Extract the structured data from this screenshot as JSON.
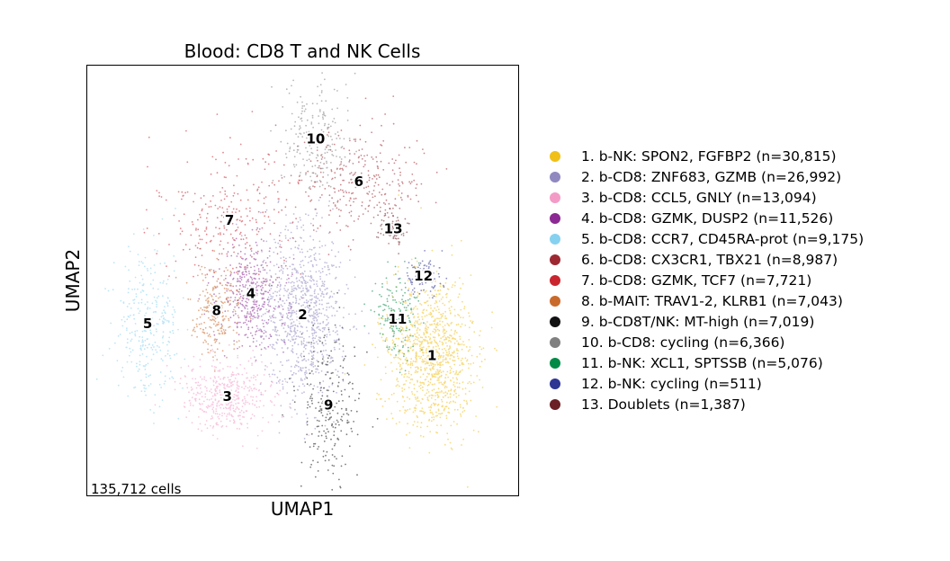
{
  "chart_data": {
    "type": "scatter",
    "title": "Blood: CD8 T and NK Cells",
    "xlabel": "UMAP1",
    "ylabel": "UMAP2",
    "annotation": "135,712 cells",
    "legend_position": "right",
    "axis_ticks": "none",
    "grid": false,
    "clusters": [
      {
        "id": "1",
        "legend": "1. b-NK: SPON2, FGFBP2 (n=30,815)",
        "color": "#f0c019",
        "centroid": [
          0.8,
          0.325
        ],
        "spread": [
          0.115,
          0.205
        ]
      },
      {
        "id": "2",
        "legend": "2. b-CD8: ZNF683, GZMB (n=26,992)",
        "color": "#8f89c0",
        "centroid": [
          0.5,
          0.42
        ],
        "spread": [
          0.11,
          0.23
        ]
      },
      {
        "id": "3",
        "legend": "3. b-CD8: CCL5, GNLY (n=13,094)",
        "color": "#f39bc6",
        "centroid": [
          0.325,
          0.23
        ],
        "spread": [
          0.12,
          0.095
        ]
      },
      {
        "id": "4",
        "legend": "4. b-CD8: GZMK, DUSP2 (n=11,526)",
        "color": "#8b2a92",
        "centroid": [
          0.38,
          0.47
        ],
        "spread": [
          0.09,
          0.14
        ]
      },
      {
        "id": "5",
        "legend": "5. b-CD8: CCR7, CD45RA-prot (n=9,175)",
        "color": "#86d1ef",
        "centroid": [
          0.14,
          0.4
        ],
        "spread": [
          0.09,
          0.18
        ]
      },
      {
        "id": "6",
        "legend": "6. b-CD8: CX3CR1, TBX21 (n=8,987)",
        "color": "#9e2832",
        "centroid": [
          0.63,
          0.73
        ],
        "spread": [
          0.18,
          0.13
        ]
      },
      {
        "id": "7",
        "legend": "7. b-CD8: GZMK, TCF7 (n=7,721)",
        "color": "#c9252f",
        "centroid": [
          0.33,
          0.64
        ],
        "spread": [
          0.18,
          0.18
        ]
      },
      {
        "id": "8",
        "legend": "8. b-MAIT: TRAV1-2, KLRB1 (n=7,043)",
        "color": "#c96a2c",
        "centroid": [
          0.3,
          0.43
        ],
        "spread": [
          0.06,
          0.12
        ]
      },
      {
        "id": "9",
        "legend": "9. b-CD8T/NK: MT-high (n=7,019)",
        "color": "#111111",
        "centroid": [
          0.56,
          0.21
        ],
        "spread": [
          0.08,
          0.21
        ]
      },
      {
        "id": "10",
        "legend": "10. b-CD8: cycling (n=6,366)",
        "color": "#808080",
        "centroid": [
          0.53,
          0.83
        ],
        "spread": [
          0.09,
          0.14
        ]
      },
      {
        "id": "11",
        "legend": "11. b-NK: XCL1, SPTSSB (n=5,076)",
        "color": "#008a47",
        "centroid": [
          0.72,
          0.41
        ],
        "spread": [
          0.06,
          0.11
        ]
      },
      {
        "id": "12",
        "legend": "12. b-NK: cycling (n=511)",
        "color": "#2f3592",
        "centroid": [
          0.78,
          0.51
        ],
        "spread": [
          0.05,
          0.05
        ]
      },
      {
        "id": "13",
        "legend": "13. Doublets (n=1,387)",
        "color": "#6b2025",
        "centroid": [
          0.71,
          0.62
        ],
        "spread": [
          0.04,
          0.04
        ]
      }
    ]
  }
}
